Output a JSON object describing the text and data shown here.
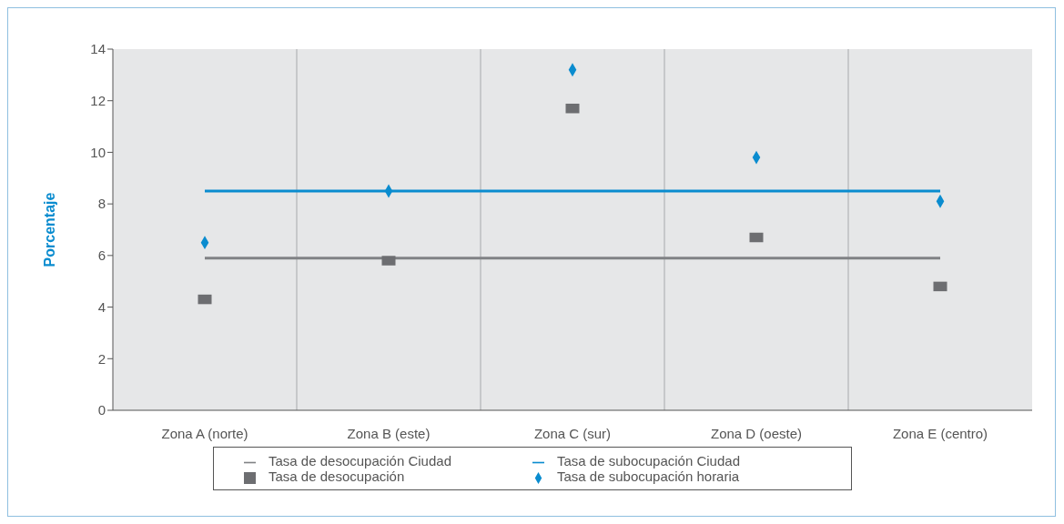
{
  "chart_data": {
    "type": "scatter",
    "ylabel": "Porcentaje",
    "categories": [
      "Zona A (norte)",
      "Zona B (este)",
      "Zona C (sur)",
      "Zona D (oeste)",
      "Zona E (centro)"
    ],
    "ylim": [
      0,
      14
    ],
    "yticks": [
      0,
      2,
      4,
      6,
      8,
      10,
      12,
      14
    ],
    "grid": "x",
    "legend": "bottom",
    "series": [
      {
        "name": "Tasa de desocupación Ciudad",
        "type": "line",
        "color": "#808285",
        "marker": "none",
        "values": [
          5.9,
          5.9,
          5.9,
          5.9,
          5.9
        ]
      },
      {
        "name": "Tasa de subocupación Ciudad",
        "type": "line",
        "color": "#0a8ccf",
        "marker": "none",
        "values": [
          8.5,
          8.5,
          8.5,
          8.5,
          8.5
        ]
      },
      {
        "name": "Tasa de desocupación",
        "type": "scatter",
        "color": "#6d6e71",
        "marker": "square",
        "values": [
          4.3,
          5.8,
          11.7,
          6.7,
          4.8
        ]
      },
      {
        "name": "Tasa de subocupación horaria",
        "type": "scatter",
        "color": "#0a8ccf",
        "marker": "diamond",
        "values": [
          6.5,
          8.5,
          13.2,
          9.8,
          8.1
        ]
      }
    ]
  }
}
